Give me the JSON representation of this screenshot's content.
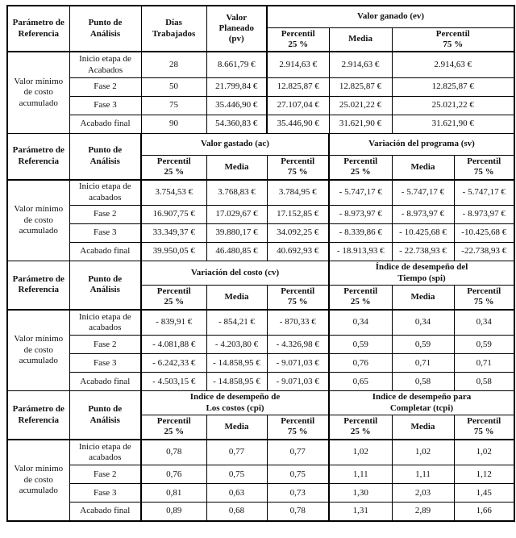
{
  "table": {
    "shared": {
      "param_header": "Parámetro de\nReferencia",
      "punto_header": "Punto de\nAnálisis",
      "param_label": "Valor mínimo\nde costo\nacumulado",
      "subcols": [
        "Percentil\n25 %",
        "Media",
        "Percentil\n75 %"
      ]
    },
    "sections": [
      {
        "fixed_columns": [
          "Días\nTrabajados",
          "Valor\nPlaneado\n(pv)"
        ],
        "groups": [
          {
            "label": "Valor ganado (ev)"
          }
        ],
        "rows": [
          {
            "label": "Inicio etapa de\nAcabados",
            "cells": [
              "28",
              "8.661,79 €",
              "2.914,63 €",
              "2.914,63 €",
              "2.914,63 €"
            ]
          },
          {
            "label": "Fase 2",
            "cells": [
              "50",
              "21.799,84 €",
              "12.825,87 €",
              "12.825,87 €",
              "12.825,87 €"
            ]
          },
          {
            "label": "Fase 3",
            "cells": [
              "75",
              "35.446,90 €",
              "27.107,04 €",
              "25.021,22 €",
              "25.021,22 €"
            ]
          },
          {
            "label": "Acabado final",
            "cells": [
              "90",
              "54.360,83 €",
              "35.446,90 €",
              "31.621,90 €",
              "31.621,90 €"
            ]
          }
        ]
      },
      {
        "groups": [
          {
            "label": "Valor gastado (ac)"
          },
          {
            "label": "Variación del programa (sv)"
          }
        ],
        "rows": [
          {
            "label": "Inicio etapa de\nacabados",
            "cells": [
              "3.754,53 €",
              "3.768,83 €",
              "3.784,95 €",
              "- 5.747,17 €",
              "- 5.747,17 €",
              "- 5.747,17 €"
            ]
          },
          {
            "label": "Fase 2",
            "cells": [
              "16.907,75 €",
              "17.029,67 €",
              "17.152,85 €",
              "- 8.973,97 €",
              "- 8.973,97 €",
              "- 8.973,97 €"
            ]
          },
          {
            "label": "Fase 3",
            "cells": [
              "33.349,37 €",
              "39.880,17 €",
              "34.092,25 €",
              "- 8.339,86 €",
              "- 10.425,68 €",
              "-10.425,68 €"
            ]
          },
          {
            "label": "Acabado final",
            "cells": [
              "39.950,05 €",
              "46.480,85 €",
              "40.692,93 €",
              "- 18.913,93 €",
              "- 22.738,93 €",
              "-22.738,93 €"
            ]
          }
        ]
      },
      {
        "groups": [
          {
            "label": "Variación del costo (cv)"
          },
          {
            "label": "Índice de desempeño del\nTiempo (spi)"
          }
        ],
        "rows": [
          {
            "label": "Inicio etapa de\nacabados",
            "cells": [
              "- 839,91 €",
              "- 854,21 €",
              "- 870,33 €",
              "0,34",
              "0,34",
              "0,34"
            ]
          },
          {
            "label": "Fase 2",
            "cells": [
              "- 4.081,88 €",
              "- 4.203,80 €",
              "- 4.326,98 €",
              "0,59",
              "0,59",
              "0,59"
            ]
          },
          {
            "label": "Fase 3",
            "cells": [
              "- 6.242,33 €",
              "- 14.858,95 €",
              "- 9.071,03 €",
              "0,76",
              "0,71",
              "0,71"
            ]
          },
          {
            "label": "Acabado final",
            "cells": [
              "- 4.503,15 €",
              "- 14.858,95 €",
              "- 9.071,03 €",
              "0,65",
              "0,58",
              "0,58"
            ]
          }
        ]
      },
      {
        "groups": [
          {
            "label": "Indice de desempeño de\nLos costos (cpi)"
          },
          {
            "label": "Indice de desempeño para\nCompletar (tcpi)"
          }
        ],
        "rows": [
          {
            "label": "Inicio etapa de\nacabados",
            "cells": [
              "0,78",
              "0,77",
              "0,77",
              "1,02",
              "1,02",
              "1,02"
            ]
          },
          {
            "label": "Fase 2",
            "cells": [
              "0,76",
              "0,75",
              "0,75",
              "1,11",
              "1,11",
              "1,12"
            ]
          },
          {
            "label": "Fase 3",
            "cells": [
              "0,81",
              "0,63",
              "0,73",
              "1,30",
              "2,03",
              "1,45"
            ]
          },
          {
            "label": "Acabado final",
            "cells": [
              "0,89",
              "0,68",
              "0,78",
              "1,31",
              "2,89",
              "1,66"
            ]
          }
        ]
      }
    ]
  }
}
